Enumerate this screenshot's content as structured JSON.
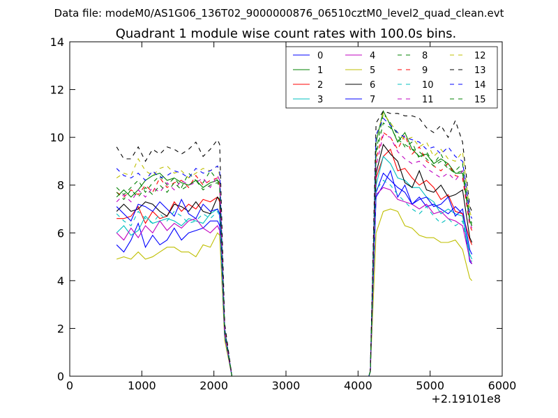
{
  "figure": {
    "suptitle": "Data file: modeM0/AS1G06_136T02_9000000876_06510cztM0_level2_quad_clean.evt"
  },
  "chart_data": {
    "type": "line",
    "title": "Quadrant 1 module wise count rates with 100.0s bins.",
    "xlabel": "",
    "ylabel": "",
    "x_offset_label": "+2.19101e8",
    "xlim": [
      0,
      6000
    ],
    "ylim": [
      0,
      14
    ],
    "xticks": [
      0,
      1000,
      2000,
      3000,
      4000,
      5000,
      6000
    ],
    "yticks": [
      0,
      2,
      4,
      6,
      8,
      10,
      12,
      14
    ],
    "grid": false,
    "legend": {
      "placement": "top-right",
      "columns": 4
    },
    "x": [
      650,
      750,
      850,
      950,
      1050,
      1150,
      1250,
      1350,
      1450,
      1550,
      1650,
      1750,
      1850,
      1950,
      2050,
      2080,
      2150,
      2250,
      2350,
      4150,
      4170,
      4250,
      4350,
      4450,
      4550,
      4650,
      4750,
      4850,
      4950,
      5050,
      5150,
      5250,
      5350,
      5450,
      5550,
      5580
    ],
    "series": [
      {
        "name": "0",
        "color": "#0000ff",
        "dash": "solid",
        "values": [
          5.5,
          5.2,
          5.7,
          6.4,
          5.4,
          5.9,
          5.5,
          5.7,
          6.2,
          5.7,
          6.0,
          6.1,
          6.2,
          6.5,
          6.5,
          6.3,
          1.7,
          0,
          0,
          0,
          0.2,
          7.5,
          8.0,
          8.6,
          7.5,
          8.0,
          7.2,
          7.5,
          7.1,
          7.2,
          7.0,
          6.8,
          7.1,
          6.8,
          4.8,
          4.7
        ]
      },
      {
        "name": "1",
        "color": "#008000",
        "dash": "solid",
        "values": [
          7.5,
          7.8,
          7.5,
          7.8,
          8.2,
          8.4,
          8.5,
          8.2,
          8.3,
          8.1,
          8.0,
          8.2,
          7.9,
          8.1,
          8.2,
          8.0,
          1.9,
          0,
          0,
          0,
          0.2,
          9.8,
          11.1,
          10.5,
          9.8,
          10.2,
          9.5,
          9.2,
          9.3,
          8.9,
          9.1,
          8.9,
          8.5,
          8.5,
          6.5,
          6.3
        ]
      },
      {
        "name": "2",
        "color": "#ff0000",
        "dash": "solid",
        "values": [
          6.6,
          6.6,
          6.7,
          7.1,
          6.4,
          6.9,
          6.6,
          6.7,
          7.3,
          6.9,
          7.2,
          7.0,
          7.4,
          7.3,
          7.5,
          7.3,
          1.8,
          0,
          0,
          0,
          0.2,
          8.3,
          9.2,
          9.5,
          8.6,
          8.7,
          8.3,
          8.0,
          8.2,
          7.9,
          7.4,
          7.6,
          6.9,
          6.8,
          5.7,
          5.5
        ]
      },
      {
        "name": "3",
        "color": "#00bfbf",
        "dash": "solid",
        "values": [
          6.0,
          6.3,
          5.9,
          6.1,
          6.7,
          6.4,
          6.5,
          6.6,
          6.5,
          6.3,
          6.6,
          6.5,
          6.4,
          6.8,
          7.0,
          6.8,
          1.7,
          0,
          0,
          0,
          0.2,
          8.0,
          9.2,
          8.9,
          8.3,
          8.2,
          7.9,
          7.9,
          7.5,
          7.3,
          6.8,
          7.0,
          6.8,
          6.7,
          5.1,
          4.9
        ]
      },
      {
        "name": "4",
        "color": "#bf00bf",
        "dash": "solid",
        "values": [
          6.0,
          5.7,
          6.2,
          5.8,
          6.3,
          6.0,
          6.5,
          6.1,
          6.4,
          6.2,
          6.5,
          6.6,
          6.2,
          6.0,
          6.3,
          6.1,
          1.6,
          0,
          0,
          0,
          0.2,
          7.6,
          7.9,
          7.8,
          7.4,
          7.3,
          7.2,
          7.0,
          7.2,
          6.8,
          6.9,
          6.6,
          6.5,
          6.3,
          4.9,
          4.7
        ]
      },
      {
        "name": "5",
        "color": "#bfbf00",
        "dash": "solid",
        "values": [
          4.9,
          5.0,
          4.9,
          5.2,
          4.9,
          5.0,
          5.2,
          5.4,
          5.4,
          5.2,
          5.2,
          5.0,
          5.5,
          5.4,
          6.0,
          5.9,
          1.5,
          0,
          0,
          0,
          0.2,
          6.0,
          6.9,
          7.0,
          6.9,
          6.3,
          6.2,
          5.9,
          5.8,
          5.8,
          5.6,
          5.6,
          5.7,
          5.3,
          4.1,
          4.0
        ]
      },
      {
        "name": "6",
        "color": "#000000",
        "dash": "solid",
        "values": [
          6.9,
          7.2,
          6.9,
          7.0,
          7.3,
          7.2,
          6.9,
          6.7,
          7.2,
          7.1,
          6.9,
          7.3,
          6.9,
          6.8,
          7.5,
          7.4,
          1.8,
          0,
          0,
          0,
          0.2,
          8.5,
          9.7,
          9.3,
          9.0,
          8.1,
          7.9,
          8.6,
          7.8,
          7.7,
          8.0,
          7.5,
          7.6,
          7.8,
          5.8,
          5.6
        ]
      },
      {
        "name": "7",
        "color": "#0000ff",
        "dash": "solid",
        "values": [
          7.1,
          6.8,
          6.5,
          7.2,
          7.1,
          6.9,
          7.3,
          7.0,
          6.7,
          7.4,
          6.8,
          6.6,
          7.2,
          6.9,
          7.0,
          6.8,
          1.7,
          0,
          0,
          0,
          0.2,
          7.7,
          8.5,
          8.2,
          7.9,
          7.7,
          7.2,
          7.4,
          7.5,
          7.1,
          7.2,
          7.5,
          6.7,
          7.0,
          5.3,
          5.1
        ]
      },
      {
        "name": "8",
        "color": "#008000",
        "dash": "dashed",
        "values": [
          7.9,
          7.6,
          7.9,
          8.2,
          7.7,
          8.1,
          8.4,
          8.0,
          8.3,
          7.9,
          8.5,
          8.2,
          8.1,
          8.6,
          8.2,
          8.1,
          1.9,
          0,
          0,
          0,
          0.2,
          9.4,
          11.0,
          10.6,
          10.1,
          9.6,
          9.8,
          9.1,
          9.4,
          8.9,
          9.3,
          8.7,
          8.6,
          8.9,
          6.6,
          6.4
        ]
      },
      {
        "name": "9",
        "color": "#ff0000",
        "dash": "dashed",
        "values": [
          7.7,
          7.5,
          7.8,
          7.6,
          8.0,
          7.7,
          8.3,
          7.9,
          8.1,
          8.2,
          7.9,
          8.4,
          8.0,
          8.2,
          8.3,
          8.0,
          1.9,
          0,
          0,
          0,
          0.2,
          9.1,
          10.2,
          10.0,
          9.5,
          10.1,
          9.3,
          9.6,
          9.0,
          8.8,
          8.6,
          8.9,
          8.4,
          8.3,
          6.3,
          6.1
        ]
      },
      {
        "name": "10",
        "color": "#00bfbf",
        "dash": "dashed",
        "values": [
          6.8,
          6.5,
          6.3,
          6.9,
          6.6,
          6.4,
          6.8,
          6.5,
          6.9,
          6.7,
          6.4,
          6.5,
          6.8,
          6.6,
          6.9,
          6.7,
          1.7,
          0,
          0,
          0,
          0.2,
          7.8,
          8.2,
          8.0,
          7.6,
          7.3,
          7.0,
          6.8,
          7.1,
          6.7,
          6.4,
          6.6,
          6.3,
          6.5,
          5.0,
          4.8
        ]
      },
      {
        "name": "11",
        "color": "#bf00bf",
        "dash": "dashed",
        "values": [
          7.3,
          7.6,
          7.3,
          7.8,
          7.5,
          7.9,
          7.7,
          8.1,
          7.8,
          8.2,
          8.0,
          8.1,
          8.3,
          7.9,
          8.4,
          8.2,
          1.8,
          0,
          0,
          0,
          0.2,
          8.8,
          10.1,
          10.0,
          9.4,
          9.1,
          8.9,
          9.0,
          8.7,
          8.5,
          8.3,
          8.5,
          8.2,
          8.6,
          6.4,
          6.2
        ]
      },
      {
        "name": "12",
        "color": "#bfbf00",
        "dash": "dashed",
        "values": [
          8.3,
          8.5,
          8.4,
          9.1,
          8.6,
          8.4,
          8.7,
          8.8,
          8.5,
          8.6,
          8.3,
          8.5,
          8.7,
          8.6,
          8.8,
          8.4,
          2.0,
          0,
          0,
          0,
          0.2,
          10.0,
          11.0,
          10.6,
          10.2,
          9.9,
          10.0,
          9.6,
          9.8,
          9.2,
          9.5,
          9.1,
          9.0,
          9.4,
          6.9,
          6.6
        ]
      },
      {
        "name": "13",
        "color": "#000000",
        "dash": "dashed",
        "values": [
          9.6,
          9.1,
          9.1,
          9.6,
          9.0,
          9.5,
          9.3,
          9.6,
          9.5,
          9.3,
          9.5,
          9.8,
          9.2,
          9.5,
          9.9,
          9.7,
          2.2,
          0,
          0,
          0,
          0.2,
          10.6,
          11.1,
          11.0,
          11.0,
          10.9,
          10.9,
          10.8,
          10.4,
          10.2,
          10.5,
          10.0,
          10.7,
          9.8,
          7.1,
          6.9
        ]
      },
      {
        "name": "14",
        "color": "#0000ff",
        "dash": "dashed",
        "values": [
          8.7,
          8.4,
          8.3,
          8.5,
          8.2,
          8.6,
          8.3,
          8.4,
          8.6,
          8.5,
          8.3,
          8.7,
          8.5,
          8.6,
          8.8,
          8.6,
          2.0,
          0,
          0,
          0,
          0.2,
          10.1,
          10.8,
          10.5,
          10.2,
          10.0,
          9.9,
          9.8,
          9.5,
          9.6,
          9.3,
          9.6,
          9.2,
          9.0,
          6.8,
          6.6
        ]
      },
      {
        "name": "15",
        "color": "#008000",
        "dash": "dashed",
        "values": [
          7.7,
          7.4,
          7.8,
          7.5,
          7.9,
          7.6,
          8.0,
          7.7,
          8.1,
          7.8,
          8.0,
          8.2,
          7.8,
          8.0,
          8.1,
          7.9,
          1.9,
          0,
          0,
          0,
          0.2,
          9.3,
          10.6,
          10.4,
          9.9,
          9.7,
          9.5,
          9.4,
          9.1,
          8.8,
          9.0,
          8.7,
          8.5,
          8.6,
          6.5,
          6.3
        ]
      }
    ],
    "peak_series_note": ""
  }
}
